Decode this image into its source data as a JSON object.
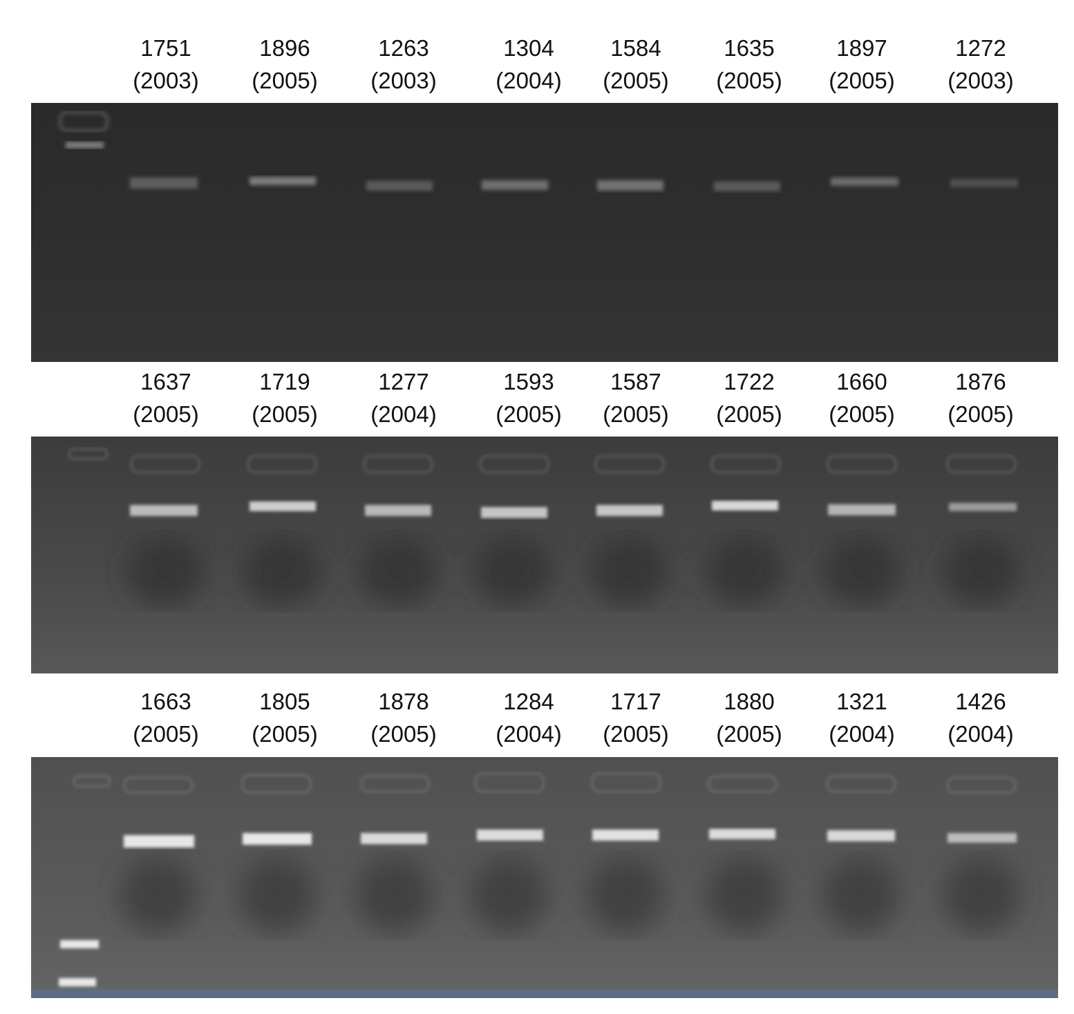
{
  "figure": {
    "panels": [
      {
        "lanes": [
          {
            "sample": "1751",
            "year": "(2003)"
          },
          {
            "sample": "1896",
            "year": "(2005)"
          },
          {
            "sample": "1263",
            "year": "(2003)"
          },
          {
            "sample": "1304",
            "year": "(2004)"
          },
          {
            "sample": "1584",
            "year": "(2005)"
          },
          {
            "sample": "1635",
            "year": "(2005)"
          },
          {
            "sample": "1897",
            "year": "(2005)"
          },
          {
            "sample": "1272",
            "year": "(2003)"
          }
        ]
      },
      {
        "lanes": [
          {
            "sample": "1637",
            "year": "(2005)"
          },
          {
            "sample": "1719",
            "year": "(2005)"
          },
          {
            "sample": "1277",
            "year": "(2004)"
          },
          {
            "sample": "1593",
            "year": "(2005)"
          },
          {
            "sample": "1587",
            "year": "(2005)"
          },
          {
            "sample": "1722",
            "year": "(2005)"
          },
          {
            "sample": "1660",
            "year": "(2005)"
          },
          {
            "sample": "1876",
            "year": "(2005)"
          }
        ]
      },
      {
        "lanes": [
          {
            "sample": "1663",
            "year": "(2005)"
          },
          {
            "sample": "1805",
            "year": "(2005)"
          },
          {
            "sample": "1878",
            "year": "(2005)"
          },
          {
            "sample": "1284",
            "year": "(2004)"
          },
          {
            "sample": "1717",
            "year": "(2005)"
          },
          {
            "sample": "1880",
            "year": "(2005)"
          },
          {
            "sample": "1321",
            "year": "(2004)"
          },
          {
            "sample": "1426",
            "year": "(2004)"
          }
        ]
      }
    ]
  }
}
